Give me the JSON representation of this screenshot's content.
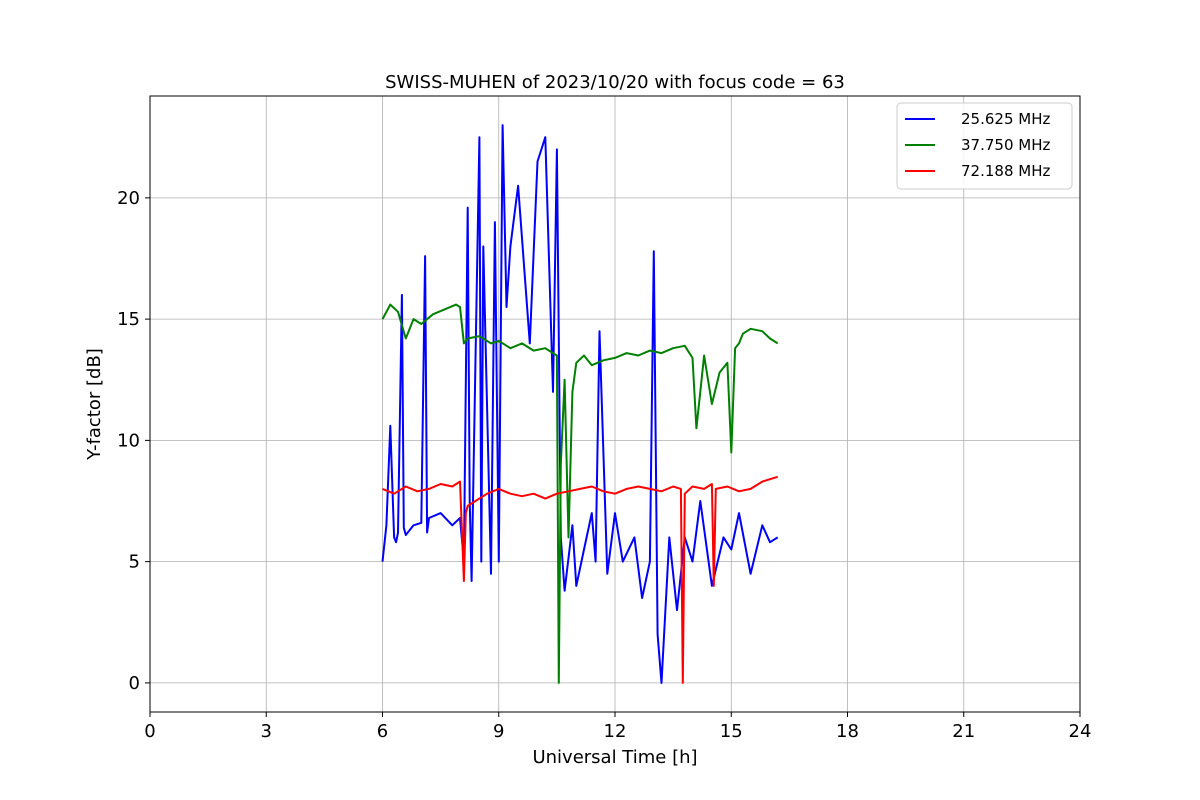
{
  "chart_data": {
    "type": "line",
    "title": "SWISS-MUHEN of 2023/10/20 with focus code = 63",
    "xlabel": "Universal Time [h]",
    "ylabel": "Y-factor [dB]",
    "xlim": [
      0,
      24
    ],
    "ylim": [
      -1.2,
      24.2
    ],
    "x_ticks": [
      0,
      3,
      6,
      9,
      12,
      15,
      18,
      21,
      24
    ],
    "y_ticks": [
      0,
      5,
      10,
      15,
      20
    ],
    "grid": true,
    "legend_position": "top-right",
    "series": [
      {
        "name": "25.625 MHz",
        "color": "#0000ff",
        "x": [
          6.0,
          6.1,
          6.2,
          6.3,
          6.35,
          6.4,
          6.5,
          6.55,
          6.6,
          6.8,
          7.0,
          7.1,
          7.15,
          7.2,
          7.5,
          7.8,
          8.0,
          8.1,
          8.2,
          8.25,
          8.3,
          8.5,
          8.55,
          8.6,
          8.8,
          8.9,
          9.0,
          9.1,
          9.2,
          9.3,
          9.5,
          9.8,
          10.0,
          10.2,
          10.4,
          10.5,
          10.6,
          10.7,
          10.9,
          11.0,
          11.2,
          11.4,
          11.5,
          11.6,
          11.8,
          12.0,
          12.2,
          12.5,
          12.7,
          12.9,
          13.0,
          13.1,
          13.2,
          13.4,
          13.6,
          13.8,
          14.0,
          14.2,
          14.5,
          14.8,
          15.0,
          15.2,
          15.5,
          15.8,
          16.0,
          16.2
        ],
        "y": [
          5.0,
          6.5,
          10.6,
          6.0,
          5.8,
          6.2,
          16.0,
          6.4,
          6.1,
          6.5,
          6.6,
          17.6,
          6.2,
          6.8,
          7.0,
          6.5,
          6.8,
          5.0,
          19.6,
          7.5,
          4.2,
          22.5,
          5.0,
          18.0,
          4.5,
          19.0,
          5.0,
          23.0,
          15.5,
          18.0,
          20.5,
          14.0,
          21.5,
          22.5,
          12.0,
          22.0,
          6.0,
          3.8,
          6.5,
          4.0,
          5.5,
          7.0,
          5.0,
          14.5,
          4.5,
          7.0,
          5.0,
          6.0,
          3.5,
          5.0,
          17.8,
          2.0,
          0.0,
          6.0,
          3.0,
          6.0,
          5.0,
          7.5,
          4.0,
          6.0,
          5.5,
          7.0,
          4.5,
          6.5,
          5.8,
          6.0
        ]
      },
      {
        "name": "37.750 MHz",
        "color": "#008000",
        "x": [
          6.0,
          6.2,
          6.4,
          6.6,
          6.8,
          7.0,
          7.3,
          7.6,
          7.9,
          8.0,
          8.1,
          8.2,
          8.5,
          8.8,
          9.0,
          9.3,
          9.6,
          9.9,
          10.2,
          10.4,
          10.5,
          10.55,
          10.6,
          10.7,
          10.8,
          10.9,
          11.0,
          11.2,
          11.4,
          11.7,
          12.0,
          12.3,
          12.6,
          12.9,
          13.2,
          13.5,
          13.8,
          14.0,
          14.1,
          14.2,
          14.3,
          14.5,
          14.7,
          14.9,
          15.0,
          15.1,
          15.2,
          15.3,
          15.5,
          15.8,
          16.0,
          16.2
        ],
        "y": [
          15.0,
          15.6,
          15.3,
          14.2,
          15.0,
          14.8,
          15.2,
          15.4,
          15.6,
          15.5,
          14.0,
          14.2,
          14.3,
          14.0,
          14.1,
          13.8,
          14.0,
          13.7,
          13.8,
          13.6,
          13.5,
          0.0,
          9.0,
          12.5,
          6.0,
          12.0,
          13.2,
          13.5,
          13.1,
          13.3,
          13.4,
          13.6,
          13.5,
          13.7,
          13.6,
          13.8,
          13.9,
          13.4,
          10.5,
          12.0,
          13.5,
          11.5,
          12.8,
          13.2,
          9.5,
          13.8,
          14.0,
          14.4,
          14.6,
          14.5,
          14.2,
          14.0
        ]
      },
      {
        "name": "72.188 MHz",
        "color": "#ff0000",
        "x": [
          6.0,
          6.3,
          6.6,
          6.9,
          7.2,
          7.5,
          7.8,
          8.0,
          8.1,
          8.15,
          8.2,
          8.4,
          8.7,
          9.0,
          9.3,
          9.6,
          9.9,
          10.2,
          10.5,
          10.8,
          11.1,
          11.4,
          11.7,
          12.0,
          12.3,
          12.6,
          12.9,
          13.2,
          13.5,
          13.7,
          13.75,
          13.8,
          14.0,
          14.3,
          14.5,
          14.55,
          14.6,
          14.9,
          15.2,
          15.5,
          15.8,
          16.0,
          16.2
        ],
        "y": [
          8.0,
          7.8,
          8.1,
          7.9,
          8.0,
          8.2,
          8.1,
          8.3,
          4.2,
          7.0,
          7.3,
          7.5,
          7.8,
          8.0,
          7.8,
          7.7,
          7.8,
          7.6,
          7.8,
          7.9,
          8.0,
          8.1,
          7.9,
          7.8,
          8.0,
          8.1,
          8.0,
          7.9,
          8.1,
          8.0,
          0.0,
          7.8,
          8.1,
          8.0,
          8.2,
          4.0,
          8.0,
          8.1,
          7.9,
          8.0,
          8.3,
          8.4,
          8.5
        ]
      }
    ]
  }
}
